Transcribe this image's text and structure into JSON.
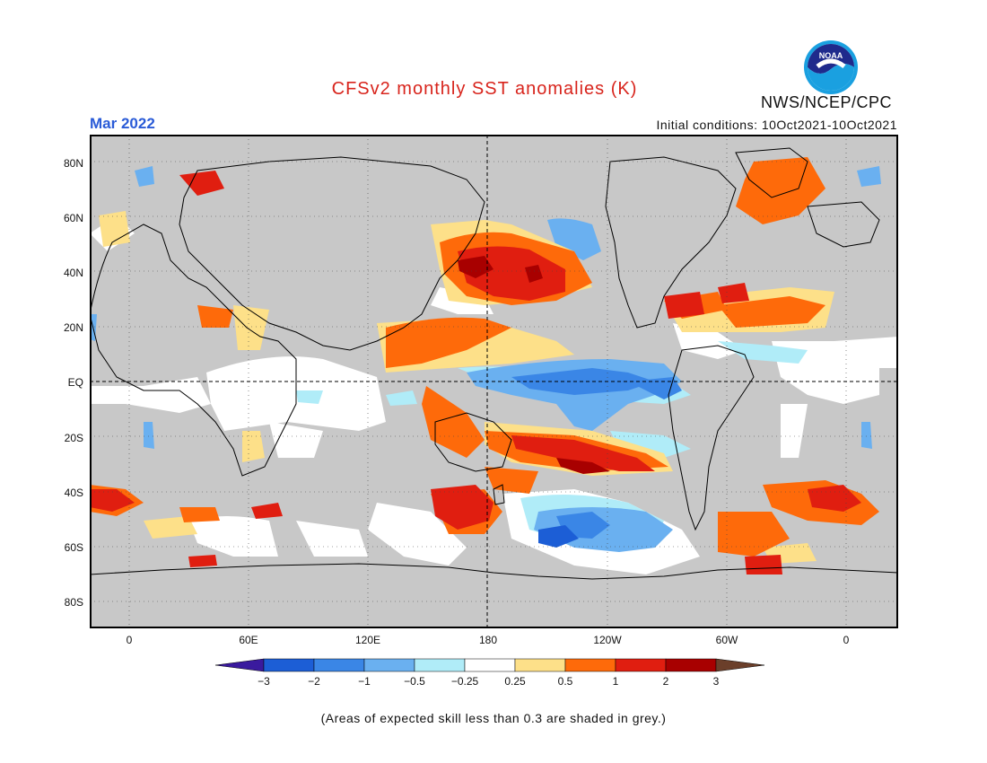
{
  "header": {
    "title": "CFSv2 monthly SST anomalies (K)",
    "agency": "NWS/NCEP/CPC",
    "logo_text": "NOAA",
    "month": "Mar 2022",
    "initial_conditions": "Initial conditions: 10Oct2021-10Oct2021"
  },
  "map": {
    "lat_labels": [
      "80N",
      "60N",
      "40N",
      "20N",
      "EQ",
      "20S",
      "40S",
      "60S",
      "80S"
    ],
    "lon_labels": [
      "0",
      "60E",
      "120E",
      "180",
      "120W",
      "60W",
      "0"
    ],
    "background_color": "#c8c8c8"
  },
  "colorbar": {
    "ticks": [
      "-3",
      "-2",
      "-1",
      "-0.5",
      "-0.25",
      "0.25",
      "0.5",
      "1",
      "2",
      "3"
    ],
    "colors": [
      "#3a1a9e",
      "#1c5ed6",
      "#3a86e6",
      "#6ab0f0",
      "#b0ecf8",
      "#ffffff",
      "#fde089",
      "#fe6a0a",
      "#e01e10",
      "#a80000",
      "#6b3f2a"
    ]
  },
  "footnote": "(Areas of expected skill less than 0.3 are shaded in grey.)"
}
